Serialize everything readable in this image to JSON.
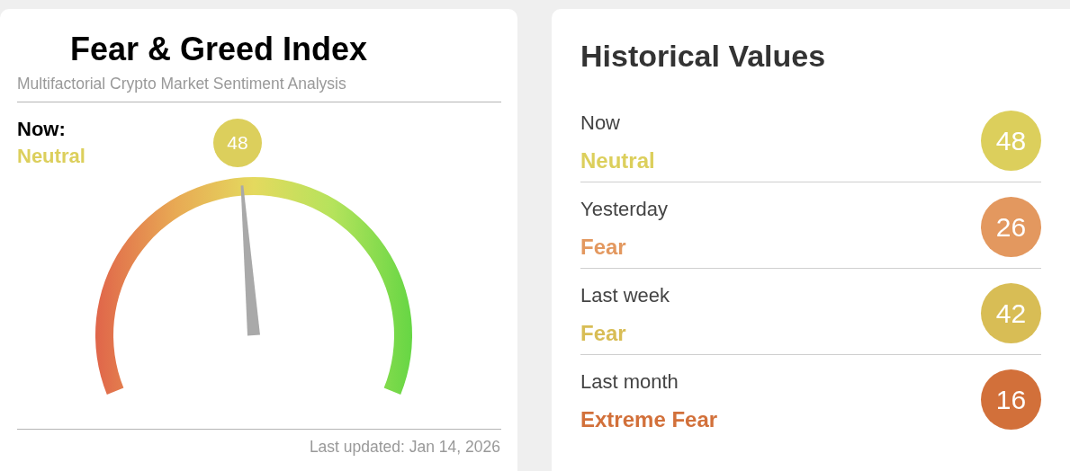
{
  "chart_data": [
    {
      "type": "other",
      "title": "Fear & Greed Index",
      "subtitle": "Multifactorial Crypto Market Sentiment Analysis",
      "values": [
        48
      ],
      "colors": [
        "#dccf5c"
      ],
      "data_labels": true,
      "annotations": [
        "Now:",
        "Neutral",
        "Last updated: Jan 14, 2026"
      ]
    },
    {
      "type": "other",
      "title": "Historical Values",
      "categories": [
        "Now",
        "Yesterday",
        "Last week",
        "Last month"
      ],
      "values": [
        48,
        26,
        42,
        16
      ],
      "colors": [
        "#dccf5c",
        "#e3985f",
        "#d8bd55",
        "#d2703a"
      ],
      "data_labels": true,
      "annotations": [
        "Neutral",
        "Fear",
        "Fear",
        "Extreme Fear"
      ]
    }
  ]
}
